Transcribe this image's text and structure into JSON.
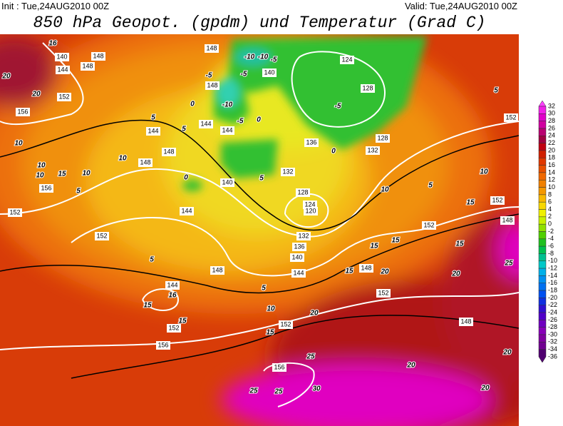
{
  "header": {
    "init": "Init : Tue,24AUG2010 00Z",
    "valid": "Valid: Tue,24AUG2010 00Z",
    "title": "850 hPa Geopot. (gpdm) und Temperatur (Grad C)"
  },
  "colorbar": {
    "labels": [
      32,
      30,
      28,
      26,
      24,
      22,
      20,
      18,
      16,
      14,
      12,
      10,
      8,
      6,
      4,
      2,
      0,
      -2,
      -4,
      -6,
      -8,
      -10,
      -12,
      -14,
      -16,
      -18,
      -20,
      -22,
      -24,
      -26,
      -28,
      -30,
      -32,
      -34,
      -36
    ],
    "colors": [
      "#ff40ff",
      "#f020e8",
      "#e000c8",
      "#d000a0",
      "#b80070",
      "#a00040",
      "#c00010",
      "#d02000",
      "#e03800",
      "#e85000",
      "#f06800",
      "#f08000",
      "#f49800",
      "#f8b800",
      "#f8d800",
      "#f0f000",
      "#c8f000",
      "#90e000",
      "#50d000",
      "#20c020",
      "#00c050",
      "#00c090",
      "#00c8c8",
      "#00b0e8",
      "#0090f0",
      "#0070f0",
      "#0050f0",
      "#1030e0",
      "#3010d0",
      "#5000c8",
      "#7000c0",
      "#8800b8",
      "#8000a0",
      "#700090",
      "#500070"
    ]
  },
  "geopotential_labels": [
    140,
    144,
    148,
    148,
    152,
    156,
    144,
    148,
    148,
    144,
    144,
    140,
    148,
    140,
    148,
    124,
    128,
    128,
    132,
    136,
    132,
    128,
    124,
    120,
    144,
    152,
    132,
    136,
    140,
    144,
    148,
    148,
    152,
    152,
    152,
    152,
    148,
    156,
    152,
    144,
    152,
    156,
    152,
    148,
    156
  ],
  "temperature_labels": [
    16,
    20,
    20,
    10,
    10,
    10,
    15,
    10,
    5,
    10,
    5,
    0,
    5,
    0,
    -5,
    -5,
    -10,
    -5,
    -10,
    -10,
    -5,
    0,
    5,
    -5,
    0,
    5,
    10,
    10,
    5,
    15,
    15,
    15,
    15,
    20,
    20,
    25,
    15,
    5,
    5,
    10,
    15,
    16,
    15,
    15,
    20,
    20,
    20,
    25,
    25,
    25,
    30,
    20
  ]
}
